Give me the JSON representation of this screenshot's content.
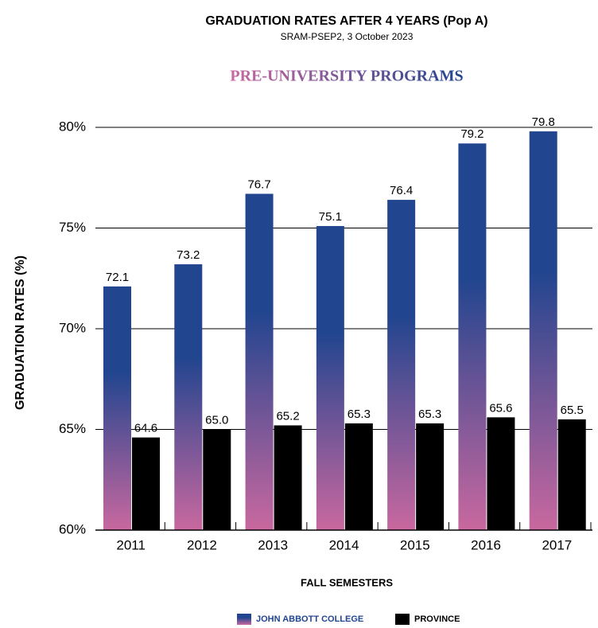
{
  "chart_data": {
    "type": "bar",
    "title": "GRADUATION RATES AFTER 4 YEARS (Pop A)",
    "subtitle": "SRAM-PSEP2, 3 October 2023",
    "heading": "PRE-UNIVERSITY PROGRAMS",
    "y_label": "GRADUATION RATES (%)",
    "x_label": "FALL SEMESTERS",
    "categories": [
      "2011",
      "2012",
      "2013",
      "2014",
      "2015",
      "2016",
      "2017"
    ],
    "series": [
      {
        "name": "JOHN ABBOTT COLLEGE",
        "color": "#21458f",
        "gradient_to": "#c9689f",
        "values": [
          72.1,
          73.2,
          76.7,
          75.1,
          76.4,
          79.2,
          79.8
        ]
      },
      {
        "name": "PROVINCE",
        "color": "#000000",
        "values": [
          64.6,
          65.0,
          65.2,
          65.3,
          65.3,
          65.6,
          65.5
        ],
        "value_labels": [
          "64.6",
          "65.0",
          "65.2",
          "65.3",
          "65.3",
          "65.6",
          "65.5"
        ]
      }
    ],
    "ylim": [
      60,
      80
    ],
    "yticks": [
      {
        "value": 60,
        "label": "60%"
      },
      {
        "value": 65,
        "label": "65%"
      },
      {
        "value": 70,
        "label": "70%"
      },
      {
        "value": 75,
        "label": "75%"
      },
      {
        "value": 80,
        "label": "80%"
      }
    ],
    "grid": true,
    "legend": "bottom"
  }
}
